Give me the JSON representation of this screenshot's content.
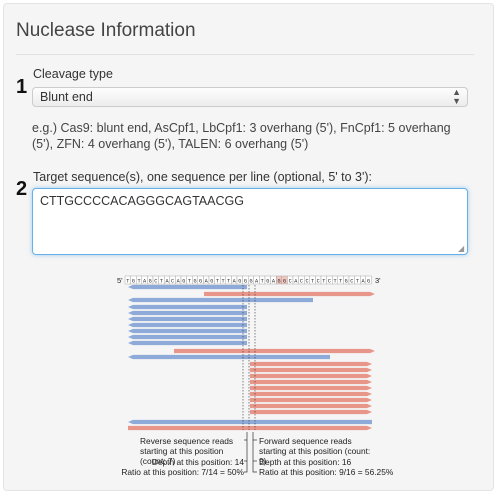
{
  "panel": {
    "title": "Nuclease Information",
    "step1": "1",
    "step2": "2",
    "cleavage_label": "Cleavage type",
    "cleavage_selected": "Blunt end",
    "help_text": "e.g.) Cas9: blunt end, AsCpf1, LbCpf1: 3 overhang (5'), FnCpf1: 5 overhang (5'), ZFN: 4 overhang (5'), TALEN: 6 overhang (5')",
    "target_label": "Target sequence(s), one sequence per line (optional, 5' to 3'):",
    "target_value": "CTTGCCCCACAGGGCAGTAACGG"
  },
  "diagram": {
    "five_prime": "5'",
    "three_prime": "3'",
    "sequence": "TGTAGCTACAGTGGAGTTTAGGGATGAGGCACCTCTCTTGCTAG",
    "colors": {
      "reverse": "#8eaad8",
      "forward": "#e8968a",
      "cut_line": "#333333"
    },
    "reverse_caption": "Reverse sequence reads starting at this position (count: 7)",
    "reverse_depth": "Depth at this position: 14",
    "reverse_ratio": "Ratio at this position: 7/14 = 50%",
    "forward_caption": "Forward sequence reads starting at this position (count: 9)",
    "forward_depth": "Depth at this position: 16",
    "forward_ratio": "Ratio at this position: 9/16 = 56.25%"
  }
}
